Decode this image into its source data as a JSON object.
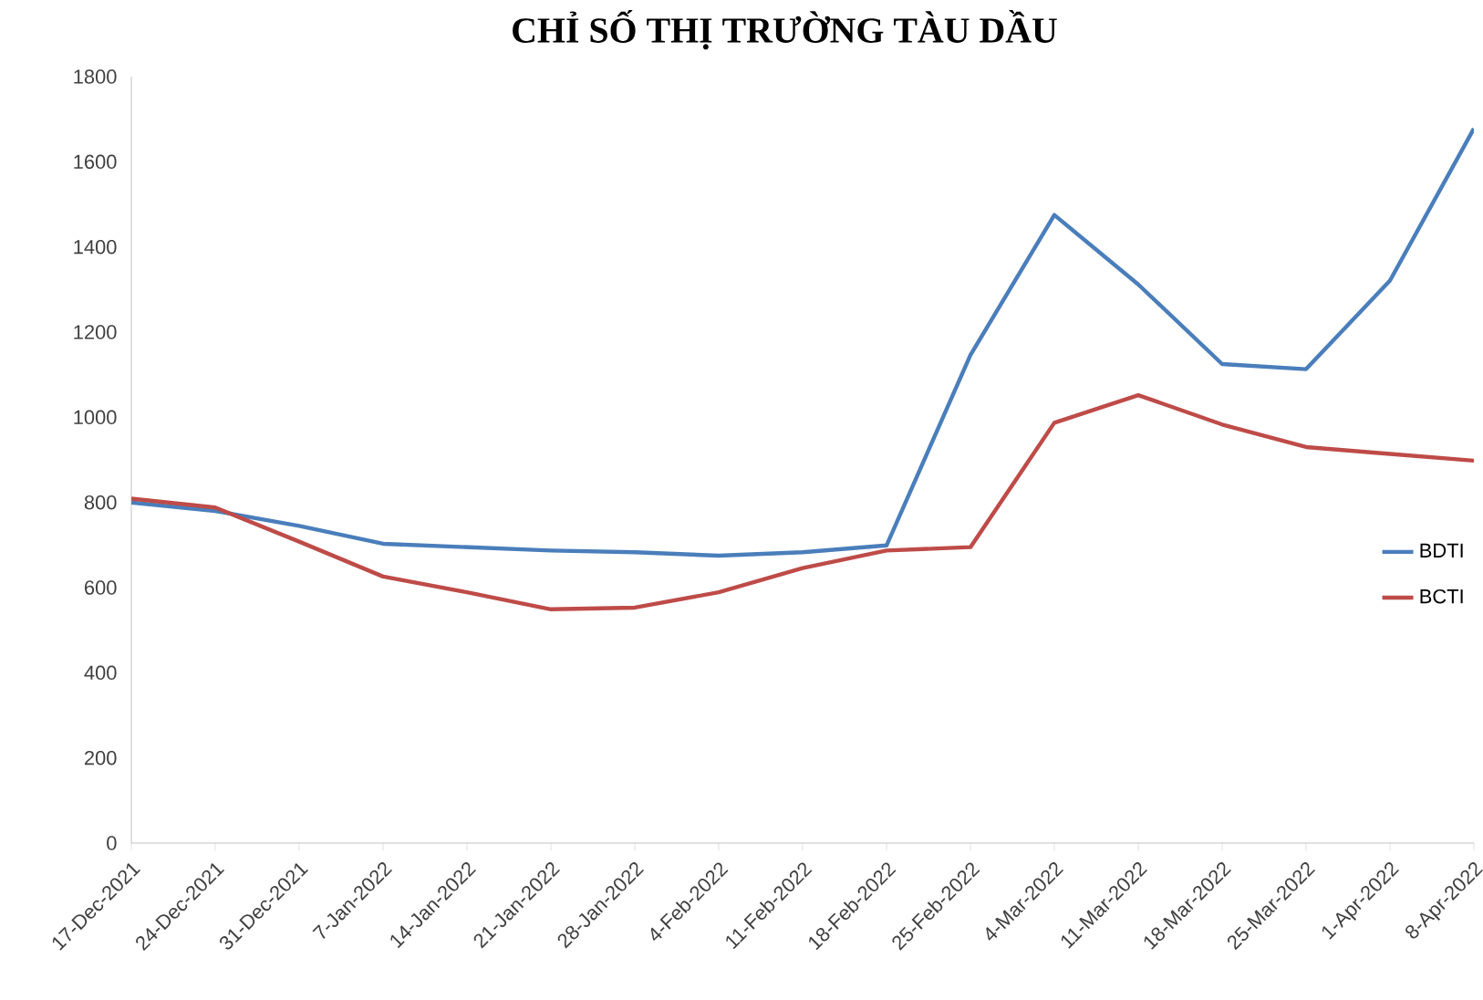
{
  "chart_data": {
    "type": "line",
    "title": "CHỈ SỐ THỊ TRƯỜNG TÀU DẦU",
    "categories": [
      "17-Dec-2021",
      "24-Dec-2021",
      "31-Dec-2021",
      "7-Jan-2022",
      "14-Jan-2022",
      "21-Jan-2022",
      "28-Jan-2022",
      "4-Feb-2022",
      "11-Feb-2022",
      "18-Feb-2022",
      "25-Feb-2022",
      "4-Mar-2022",
      "11-Mar-2022",
      "18-Mar-2022",
      "25-Mar-2022",
      "1-Apr-2022",
      "8-Apr-2022"
    ],
    "series": [
      {
        "name": "BDTI",
        "color": "#4a7ebb",
        "values": [
          800,
          780,
          745,
          703,
          695,
          687,
          683,
          675,
          683,
          699,
          1146,
          1475,
          1312,
          1125,
          1113,
          1321,
          1678
        ]
      },
      {
        "name": "BCTI",
        "color": "#be4b48",
        "values": [
          809,
          788,
          708,
          626,
          589,
          549,
          553,
          589,
          646,
          687,
          695,
          987,
          1052,
          983,
          930,
          914,
          898
        ]
      }
    ],
    "ylim": [
      0,
      1800
    ],
    "yticks": [
      0,
      200,
      400,
      600,
      800,
      1000,
      1200,
      1400,
      1600,
      1800
    ],
    "grid": false,
    "legend": "right",
    "marker": "none",
    "line_style": "solid"
  }
}
